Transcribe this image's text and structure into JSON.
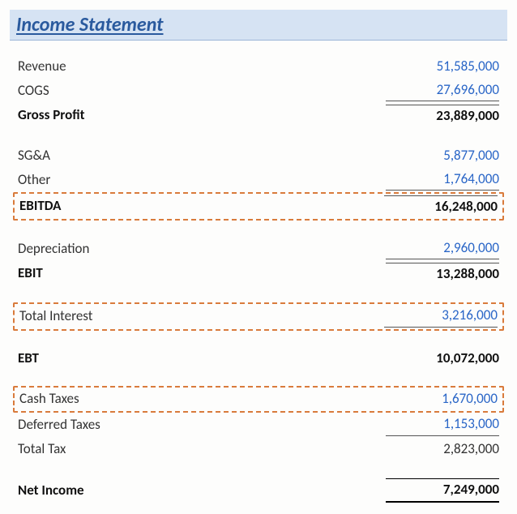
{
  "title": "Income Statement",
  "colors": {
    "title_bg": "#d6e3f3",
    "title_text": "#2a5a9e",
    "blue_value": "#2a66c7",
    "highlight_border": "#d97b3c",
    "text": "#333333",
    "bold_text": "#111111"
  },
  "rows": [
    {
      "label": "Revenue",
      "value": "51,585,000",
      "blue": true
    },
    {
      "label": "COGS",
      "value": "27,696,000",
      "blue": true,
      "underline": true
    },
    {
      "label": "Gross Profit",
      "value": "23,889,000",
      "bold": true,
      "total": true
    },
    {
      "gap": true
    },
    {
      "label": "SG&A",
      "value": "5,877,000",
      "blue": true
    },
    {
      "label": "Other",
      "value": "1,764,000",
      "blue": true,
      "underline": true
    },
    {
      "label": "EBITDA",
      "value": "16,248,000",
      "bold": true,
      "total": true,
      "highlight": true
    },
    {
      "gap": true
    },
    {
      "label": "Depreciation",
      "value": "2,960,000",
      "blue": true,
      "underline": true
    },
    {
      "label": "EBIT",
      "value": "13,288,000",
      "bold": true,
      "total": true
    },
    {
      "gap": true
    },
    {
      "label": "Total Interest",
      "value": "3,216,000",
      "blue": true,
      "underline": true,
      "highlight": true
    },
    {
      "gap": true
    },
    {
      "label": "EBT",
      "value": "10,072,000",
      "bold": true
    },
    {
      "gap": true
    },
    {
      "label": "Cash Taxes",
      "value": "1,670,000",
      "blue": true,
      "highlight": true
    },
    {
      "label": "Deferred Taxes",
      "value": "1,153,000",
      "blue": true,
      "underline": true
    },
    {
      "label": "Total Tax",
      "value": "2,823,000"
    },
    {
      "gap": true
    },
    {
      "label": "Net Income",
      "value": "7,249,000",
      "bold": true,
      "net": true
    }
  ]
}
